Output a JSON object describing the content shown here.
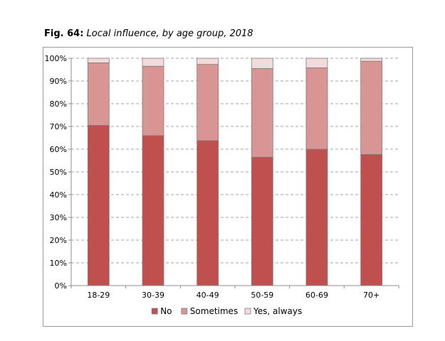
{
  "figure": {
    "label": "Fig. 64:",
    "title": "Local influence, by age group, 2018"
  },
  "chart_data": {
    "type": "bar",
    "stacked": true,
    "title": "Local influence, by age group, 2018",
    "categories": [
      "18-29",
      "30-39",
      "40-49",
      "50-59",
      "60-69",
      "70+"
    ],
    "series": [
      {
        "name": "No",
        "color": "#c0504d",
        "values": [
          70.5,
          66,
          63.8,
          56.5,
          60,
          57.7
        ]
      },
      {
        "name": "Sometimes",
        "color": "#d99594",
        "values": [
          27.5,
          30.5,
          33.5,
          39,
          35.8,
          41
        ]
      },
      {
        "name": "Yes, always",
        "color": "#f2dcdb",
        "values": [
          2,
          3.5,
          2.7,
          4.5,
          4.2,
          1.3
        ]
      }
    ],
    "ylim": [
      0,
      100
    ],
    "yticks": [
      "0%",
      "10%",
      "20%",
      "30%",
      "40%",
      "50%",
      "60%",
      "70%",
      "80%",
      "90%",
      "100%"
    ],
    "grid": true,
    "legend_position": "bottom"
  }
}
